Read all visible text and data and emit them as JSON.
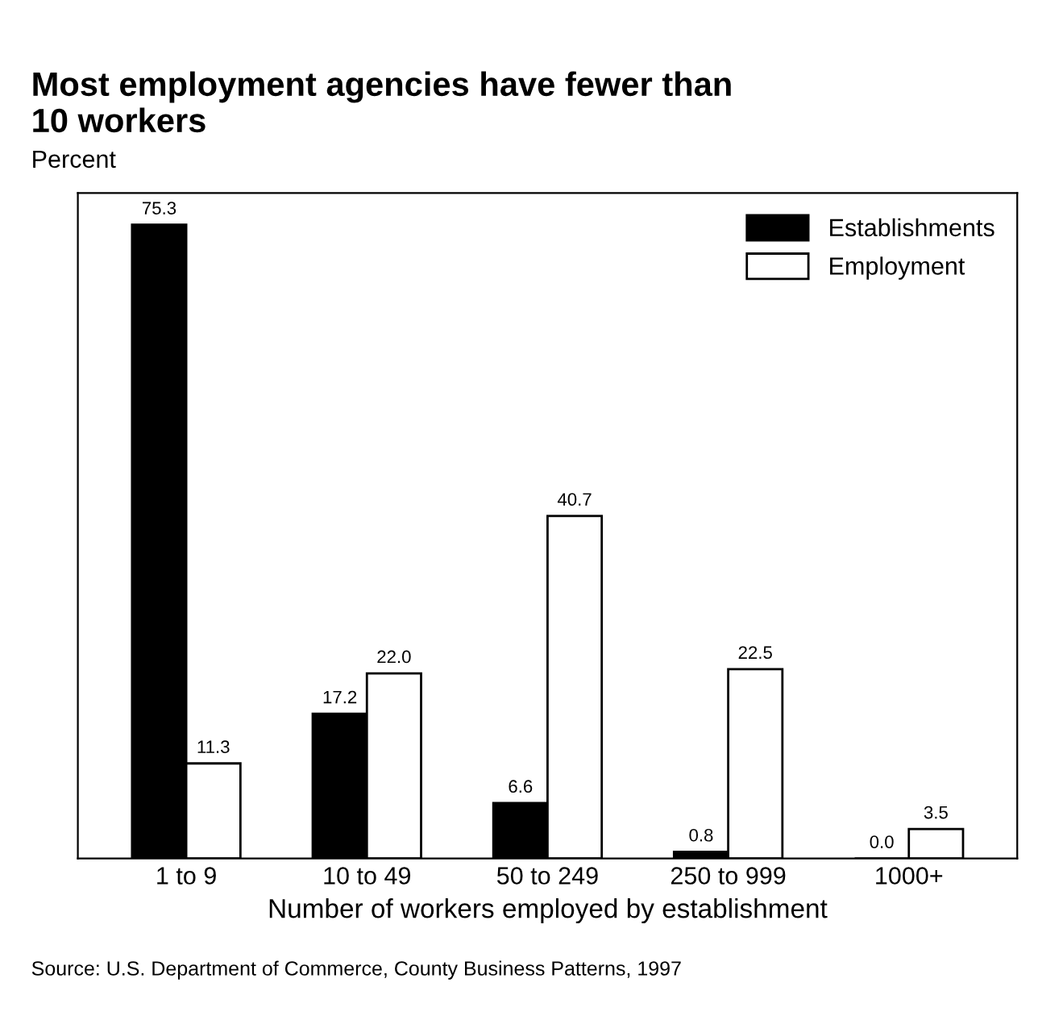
{
  "chart_data": {
    "type": "bar",
    "title": "Most employment agencies have fewer than\n10 workers",
    "ylabel": "Percent",
    "xlabel": "Number of workers employed by establishment",
    "categories": [
      "1 to 9",
      "10 to 49",
      "50 to 249",
      "250 to 999",
      "1000+"
    ],
    "series": [
      {
        "name": "Establishments",
        "color": "#000000",
        "values": [
          75.3,
          17.2,
          6.6,
          0.8,
          0.0
        ],
        "value_labels": [
          "75.3",
          "17.2",
          "6.6",
          "0.8",
          "0.0"
        ]
      },
      {
        "name": "Employment",
        "color": "#ffffff",
        "values": [
          11.3,
          22.0,
          40.7,
          22.5,
          3.5
        ],
        "value_labels": [
          "11.3",
          "22.0",
          "40.7",
          "22.5",
          "3.5"
        ]
      }
    ],
    "legend": "top right",
    "grid": false,
    "annotations": [
      "Source: U.S. Department of Commerce, County Business Patterns, 1997"
    ]
  }
}
